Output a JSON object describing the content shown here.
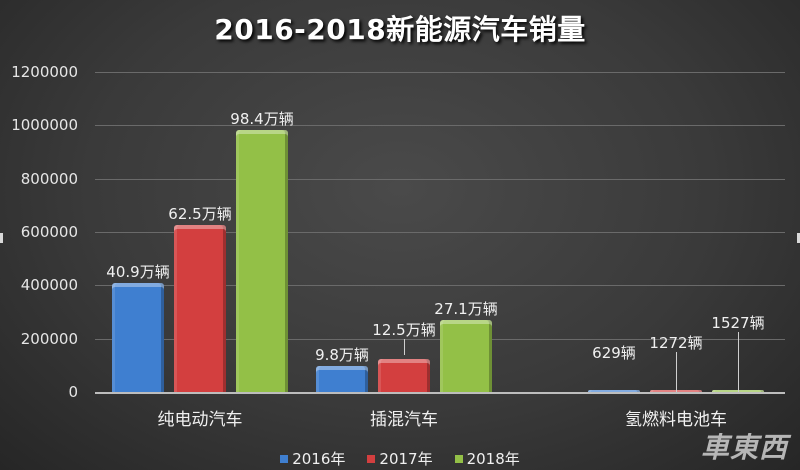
{
  "chart_data": {
    "type": "bar",
    "title": "2016-2018新能源汽车销量",
    "xlabel": "",
    "ylabel": "",
    "ylim": [
      0,
      1200000
    ],
    "yticks": [
      0,
      200000,
      400000,
      600000,
      800000,
      1000000,
      1200000
    ],
    "grid": true,
    "legend_position": "bottom",
    "categories": [
      "纯电动汽车",
      "插混汽车",
      "氢燃料电池车"
    ],
    "series": [
      {
        "name": "2016年",
        "color": "#3f7fd0",
        "values": [
          409000,
          98000,
          629
        ],
        "labels": [
          "40.9万辆",
          "9.8万辆",
          "629辆"
        ]
      },
      {
        "name": "2017年",
        "color": "#d33f3f",
        "values": [
          625000,
          125000,
          1272
        ],
        "labels": [
          "62.5万辆",
          "12.5万辆",
          "1272辆"
        ]
      },
      {
        "name": "2018年",
        "color": "#93c047",
        "values": [
          984000,
          271000,
          1527
        ],
        "labels": [
          "98.4万辆",
          "27.1万辆",
          "1527辆"
        ]
      }
    ]
  },
  "title": "2016-2018新能源汽车销量",
  "yaxis": {
    "ticks": [
      "0",
      "200000",
      "400000",
      "600000",
      "800000",
      "1000000",
      "1200000"
    ]
  },
  "categories": [
    "纯电动汽车",
    "插混汽车",
    "氢燃料电池车"
  ],
  "legend": [
    {
      "label": "2016年",
      "color": "#3f7fd0"
    },
    {
      "label": "2017年",
      "color": "#d33f3f"
    },
    {
      "label": "2018年",
      "color": "#93c047"
    }
  ],
  "watermark": "車東西"
}
